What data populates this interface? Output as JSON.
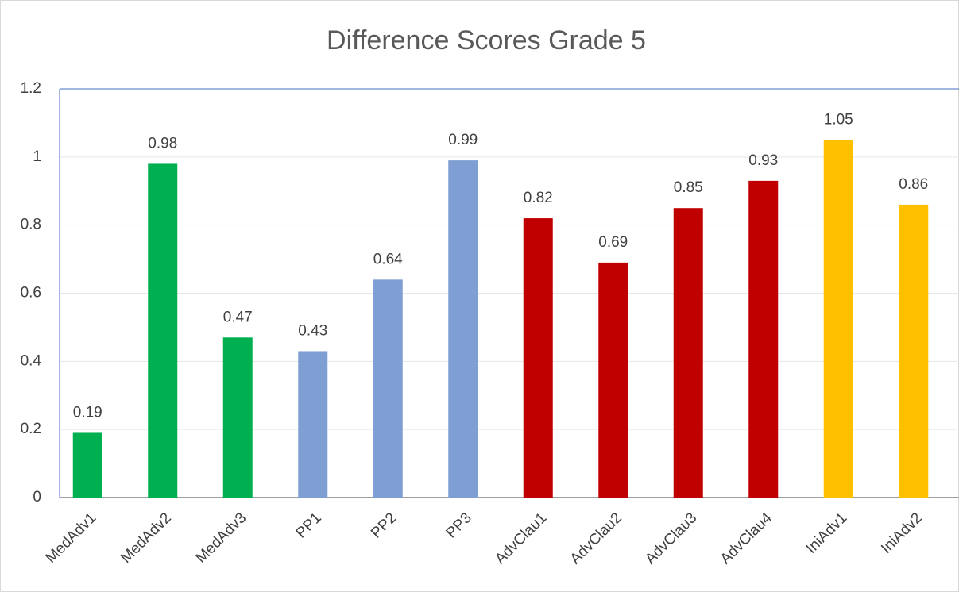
{
  "chart_data": {
    "type": "bar",
    "title": "Difference Scores Grade 5",
    "categories": [
      "MedAdv1",
      "MedAdv2",
      "MedAdv3",
      "PP1",
      "PP2",
      "PP3",
      "AdvClau1",
      "AdvClau2",
      "AdvClau3",
      "AdvClau4",
      "IniAdv1",
      "IniAdv2"
    ],
    "values": [
      0.19,
      0.98,
      0.47,
      0.43,
      0.64,
      0.99,
      0.82,
      0.69,
      0.85,
      0.93,
      1.05,
      0.86
    ],
    "colors": [
      "#00b050",
      "#00b050",
      "#00b050",
      "#7f9fd4",
      "#7f9fd4",
      "#7f9fd4",
      "#c00000",
      "#c00000",
      "#c00000",
      "#c00000",
      "#ffc000",
      "#ffc000"
    ],
    "ylim": [
      0,
      1.2
    ],
    "yticks": [
      0,
      0.2,
      0.4,
      0.6,
      0.8,
      1,
      1.2
    ],
    "grid": true
  }
}
